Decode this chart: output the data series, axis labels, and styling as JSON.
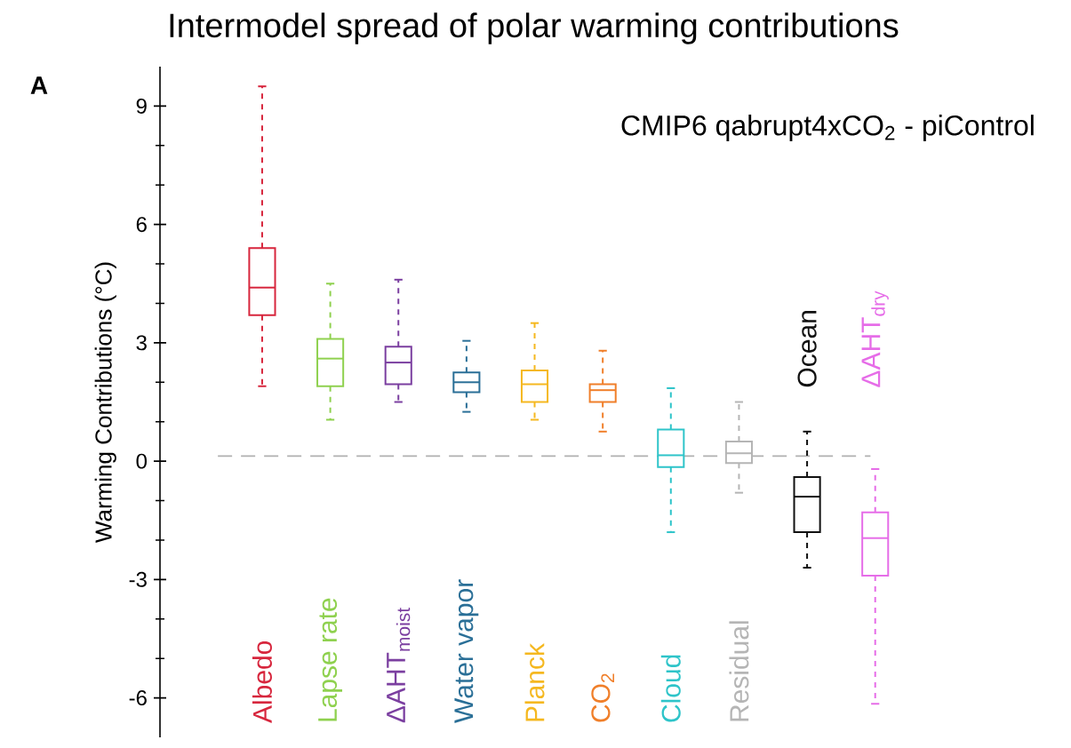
{
  "chart_data": {
    "type": "box",
    "title": "Intermodel spread of polar warming contributions",
    "subtitle": "CMIP6 qabrupt4xCO$_{2}$  - piControl",
    "ylabel": "Warming Contributions (°C)",
    "annotations": [
      "A"
    ],
    "categories": [
      "Albedo",
      "Lapse rate",
      "ΔAHT$_{moist}$",
      "Water vapor",
      "Planck",
      "CO$_{2}$",
      "Cloud",
      "Residual",
      "Ocean",
      "ΔAHT$_{dry}$"
    ],
    "colors": [
      "#d7263d",
      "#8fd14f",
      "#7b3fa0",
      "#2a6f97",
      "#f5b820",
      "#f07f2a",
      "#2ec4c9",
      "#b5b5b5",
      "#111111",
      "#e66de8"
    ],
    "boxes": [
      {
        "low": 1.9,
        "q1": 3.7,
        "median": 4.4,
        "q3": 5.4,
        "high": 9.5
      },
      {
        "low": 1.05,
        "q1": 1.9,
        "median": 2.6,
        "q3": 3.1,
        "high": 4.5
      },
      {
        "low": 1.5,
        "q1": 1.95,
        "median": 2.5,
        "q3": 2.9,
        "high": 4.6
      },
      {
        "low": 1.25,
        "q1": 1.75,
        "median": 2.0,
        "q3": 2.25,
        "high": 3.05
      },
      {
        "low": 1.05,
        "q1": 1.5,
        "median": 1.95,
        "q3": 2.3,
        "high": 3.5
      },
      {
        "low": 0.75,
        "q1": 1.5,
        "median": 1.8,
        "q3": 1.95,
        "high": 2.8
      },
      {
        "low": -1.8,
        "q1": -0.15,
        "median": 0.15,
        "q3": 0.8,
        "high": 1.85
      },
      {
        "low": -0.8,
        "q1": -0.05,
        "median": 0.2,
        "q3": 0.5,
        "high": 1.5
      },
      {
        "low": -2.7,
        "q1": -1.8,
        "median": -0.9,
        "q3": -0.4,
        "high": 0.75
      },
      {
        "low": -6.15,
        "q1": -2.9,
        "median": -1.95,
        "q3": -1.3,
        "high": -0.2
      }
    ],
    "ylim": [
      -7,
      10
    ],
    "yticks": [
      -6,
      -3,
      0,
      3,
      6,
      9
    ],
    "line_style": "dashed",
    "ref_lines": [
      {
        "axis": "y",
        "value": 0.13,
        "color": "#b0b0b0",
        "line_style": "dashed"
      }
    ]
  }
}
